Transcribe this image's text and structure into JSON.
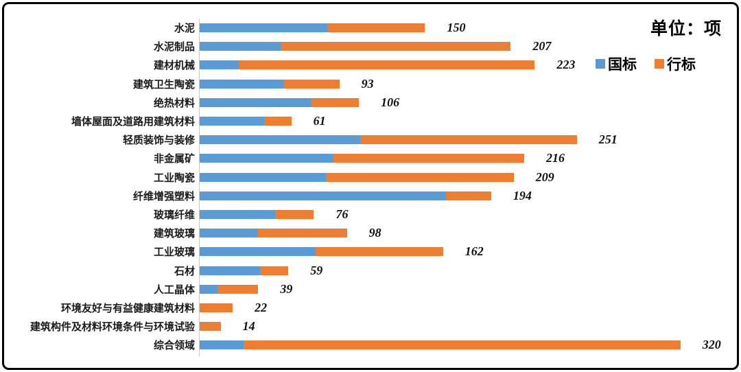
{
  "unit_label": "单位：项",
  "legend": [
    {
      "label": "国标",
      "color": "#5B9BD5"
    },
    {
      "label": "行标",
      "color": "#ED7D31"
    }
  ],
  "chart_data": {
    "type": "bar",
    "orientation": "horizontal",
    "stacked": true,
    "title": "",
    "xlabel": "",
    "ylabel": "",
    "xlim": [
      0,
      350
    ],
    "grid": false,
    "legend_position": "top-right",
    "categories": [
      "水泥",
      "水泥制品",
      "建材机械",
      "建筑卫生陶瓷",
      "绝热材料",
      "墙体屋面及道路用建筑材料",
      "轻质装饰与装修",
      "非金属矿",
      "工业陶瓷",
      "纤维增强塑料",
      "玻璃纤维",
      "建筑玻璃",
      "工业玻璃",
      "石材",
      "人工晶体",
      "环境友好与有益健康建筑材料",
      "建筑构件及材料环境条件与环境试验",
      "综合领域"
    ],
    "series": [
      {
        "name": "国标",
        "color": "#5B9BD5",
        "values": [
          85,
          54,
          26,
          56,
          74,
          43,
          107,
          89,
          84,
          164,
          50,
          39,
          77,
          40,
          12,
          0,
          0,
          29
        ]
      },
      {
        "name": "行标",
        "color": "#ED7D31",
        "values": [
          65,
          153,
          197,
          37,
          32,
          18,
          144,
          127,
          125,
          30,
          26,
          59,
          85,
          19,
          27,
          22,
          14,
          291
        ]
      }
    ],
    "totals": [
      150,
      207,
      223,
      93,
      106,
      61,
      251,
      216,
      209,
      194,
      76,
      98,
      162,
      59,
      39,
      22,
      14,
      320
    ]
  }
}
